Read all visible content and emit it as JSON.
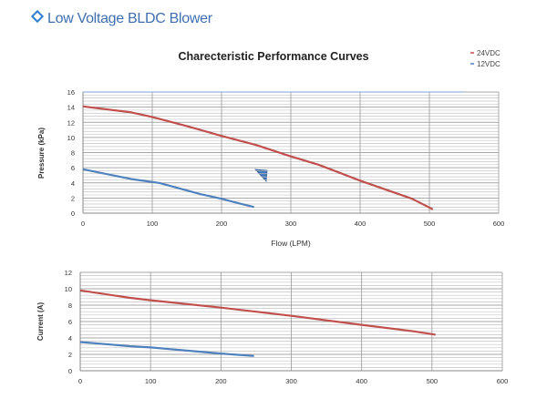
{
  "header": {
    "title": "Low Voltage BLDC Blower",
    "icon": "diamond-icon"
  },
  "chart_data": [
    {
      "type": "line",
      "title": "Charecteristic Performance Curves",
      "xlabel": "Flow (LPM)",
      "ylabel": "Pressure (kPa)",
      "xlim": [
        0,
        600
      ],
      "ylim": [
        0,
        16
      ],
      "xticks": [
        0,
        100,
        200,
        300,
        400,
        500,
        600
      ],
      "yticks": [
        0,
        2,
        4,
        6,
        8,
        10,
        12,
        14,
        16
      ],
      "grid": true,
      "legend": {
        "placement": "top-right",
        "entries": [
          "24VDC",
          "12VDC"
        ]
      },
      "series": [
        {
          "name": "24VDC",
          "color": "#c0504d",
          "x": [
            0,
            70,
            100,
            150,
            200,
            250,
            300,
            340,
            400,
            450,
            475,
            505
          ],
          "y": [
            14.1,
            13.3,
            12.7,
            11.5,
            10.2,
            9.0,
            7.5,
            6.4,
            4.3,
            2.7,
            1.9,
            0.5
          ]
        },
        {
          "name": "12VDC",
          "color": "#4f81bd",
          "x": [
            0,
            70,
            110,
            170,
            200,
            225,
            247
          ],
          "y": [
            5.8,
            4.5,
            4.0,
            2.5,
            1.9,
            1.3,
            0.8
          ]
        }
      ]
    },
    {
      "type": "line",
      "title": "",
      "xlabel": "",
      "ylabel": "Current (A)",
      "xlim": [
        0,
        600
      ],
      "ylim": [
        0,
        12
      ],
      "xticks": [
        0,
        100,
        200,
        300,
        400,
        500,
        600
      ],
      "yticks": [
        0,
        2,
        4,
        6,
        8,
        10,
        12
      ],
      "grid": true,
      "series": [
        {
          "name": "24VDC",
          "color": "#c0504d",
          "x": [
            0,
            70,
            100,
            200,
            250,
            300,
            400,
            475,
            505
          ],
          "y": [
            9.8,
            8.9,
            8.6,
            7.7,
            7.2,
            6.7,
            5.6,
            4.8,
            4.4
          ]
        },
        {
          "name": "12VDC",
          "color": "#4f81bd",
          "x": [
            0,
            70,
            100,
            200,
            247
          ],
          "y": [
            3.5,
            3.0,
            2.85,
            2.1,
            1.8
          ]
        }
      ]
    }
  ]
}
